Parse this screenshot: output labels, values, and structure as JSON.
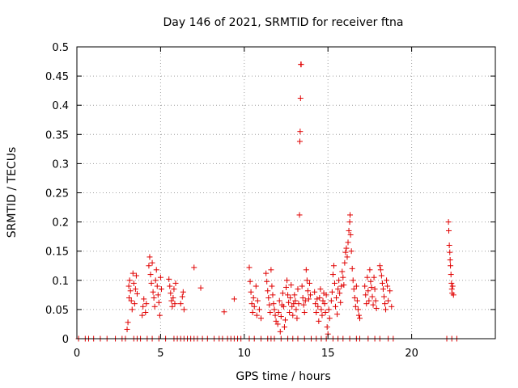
{
  "chart_data": {
    "type": "scatter",
    "title": "Day 146 of 2021, SRMTID for receiver ftna",
    "xlabel": "GPS time / hours",
    "ylabel": "SRMTID / TECUs",
    "xlim": [
      0,
      25
    ],
    "ylim": [
      0,
      0.5
    ],
    "xticks": [
      "0",
      "5",
      "10",
      "15",
      "20"
    ],
    "yticks": [
      "0",
      "0.05",
      "0.1",
      "0.15",
      "0.2",
      "0.25",
      "0.3",
      "0.35",
      "0.4",
      "0.45",
      "0.5"
    ],
    "grid": true,
    "marker": "+",
    "color": "#e00000",
    "points": [
      [
        0.1,
        0
      ],
      [
        0.5,
        0
      ],
      [
        0.7,
        0
      ],
      [
        1.0,
        0
      ],
      [
        1.4,
        0
      ],
      [
        1.8,
        0
      ],
      [
        2.3,
        0
      ],
      [
        2.7,
        0
      ],
      [
        2.9,
        0
      ],
      [
        3.4,
        0
      ],
      [
        3.6,
        0
      ],
      [
        3.8,
        0
      ],
      [
        4.2,
        0
      ],
      [
        4.5,
        0
      ],
      [
        4.9,
        0
      ],
      [
        5.3,
        0
      ],
      [
        5.8,
        0
      ],
      [
        6.0,
        0
      ],
      [
        6.2,
        0
      ],
      [
        6.4,
        0
      ],
      [
        6.6,
        0
      ],
      [
        6.8,
        0
      ],
      [
        7.0,
        0
      ],
      [
        7.2,
        0
      ],
      [
        7.5,
        0
      ],
      [
        7.8,
        0
      ],
      [
        8.2,
        0
      ],
      [
        8.5,
        0
      ],
      [
        8.7,
        0
      ],
      [
        9.0,
        0
      ],
      [
        9.2,
        0
      ],
      [
        9.4,
        0
      ],
      [
        9.6,
        0
      ],
      [
        9.8,
        0
      ],
      [
        10.3,
        0
      ],
      [
        10.6,
        0
      ],
      [
        11.0,
        0
      ],
      [
        11.4,
        0
      ],
      [
        11.6,
        0
      ],
      [
        11.8,
        0
      ],
      [
        12.2,
        0
      ],
      [
        12.6,
        0
      ],
      [
        12.9,
        0
      ],
      [
        13.2,
        0
      ],
      [
        13.6,
        0
      ],
      [
        14.0,
        0
      ],
      [
        14.3,
        0
      ],
      [
        14.6,
        0
      ],
      [
        14.9,
        0
      ],
      [
        15.3,
        0
      ],
      [
        15.6,
        0
      ],
      [
        15.9,
        0
      ],
      [
        16.3,
        0
      ],
      [
        16.7,
        0
      ],
      [
        16.9,
        0
      ],
      [
        17.4,
        0
      ],
      [
        17.8,
        0
      ],
      [
        18.1,
        0
      ],
      [
        18.6,
        0
      ],
      [
        18.9,
        0
      ],
      [
        22.1,
        0
      ],
      [
        22.4,
        0
      ],
      [
        22.7,
        0
      ],
      [
        3.0,
        0.016
      ],
      [
        3.05,
        0.028
      ],
      [
        3.1,
        0.09
      ],
      [
        3.12,
        0.07
      ],
      [
        3.15,
        0.1
      ],
      [
        3.2,
        0.082
      ],
      [
        3.25,
        0.065
      ],
      [
        3.3,
        0.05
      ],
      [
        3.35,
        0.112
      ],
      [
        3.4,
        0.095
      ],
      [
        3.45,
        0.06
      ],
      [
        3.5,
        0.085
      ],
      [
        3.55,
        0.108
      ],
      [
        3.6,
        0.077
      ],
      [
        3.9,
        0.04
      ],
      [
        3.95,
        0.055
      ],
      [
        4.0,
        0.068
      ],
      [
        4.1,
        0.045
      ],
      [
        4.15,
        0.06
      ],
      [
        4.3,
        0.125
      ],
      [
        4.35,
        0.14
      ],
      [
        4.4,
        0.11
      ],
      [
        4.45,
        0.095
      ],
      [
        4.5,
        0.13
      ],
      [
        4.55,
        0.08
      ],
      [
        4.6,
        0.07
      ],
      [
        4.65,
        0.055
      ],
      [
        4.7,
        0.1
      ],
      [
        4.75,
        0.118
      ],
      [
        4.8,
        0.09
      ],
      [
        4.85,
        0.075
      ],
      [
        4.9,
        0.062
      ],
      [
        4.95,
        0.04
      ],
      [
        5.0,
        0.105
      ],
      [
        5.05,
        0.085
      ],
      [
        5.5,
        0.102
      ],
      [
        5.55,
        0.09
      ],
      [
        5.6,
        0.078
      ],
      [
        5.65,
        0.065
      ],
      [
        5.7,
        0.055
      ],
      [
        5.75,
        0.07
      ],
      [
        5.8,
        0.085
      ],
      [
        5.85,
        0.06
      ],
      [
        5.9,
        0.095
      ],
      [
        6.2,
        0.06
      ],
      [
        6.3,
        0.072
      ],
      [
        6.35,
        0.08
      ],
      [
        6.4,
        0.05
      ],
      [
        7.0,
        0.122
      ],
      [
        7.4,
        0.087
      ],
      [
        8.8,
        0.046
      ],
      [
        9.4,
        0.068
      ],
      [
        10.3,
        0.122
      ],
      [
        10.35,
        0.098
      ],
      [
        10.4,
        0.08
      ],
      [
        10.45,
        0.06
      ],
      [
        10.5,
        0.045
      ],
      [
        10.55,
        0.07
      ],
      [
        10.6,
        0.055
      ],
      [
        10.7,
        0.09
      ],
      [
        10.75,
        0.04
      ],
      [
        10.8,
        0.065
      ],
      [
        10.9,
        0.05
      ],
      [
        11.0,
        0.035
      ],
      [
        11.3,
        0.112
      ],
      [
        11.35,
        0.098
      ],
      [
        11.4,
        0.082
      ],
      [
        11.45,
        0.07
      ],
      [
        11.5,
        0.058
      ],
      [
        11.55,
        0.045
      ],
      [
        11.6,
        0.118
      ],
      [
        11.65,
        0.09
      ],
      [
        11.7,
        0.075
      ],
      [
        11.75,
        0.06
      ],
      [
        11.8,
        0.05
      ],
      [
        11.85,
        0.04
      ],
      [
        11.9,
        0.03
      ],
      [
        12.0,
        0.025
      ],
      [
        12.05,
        0.045
      ],
      [
        12.1,
        0.065
      ],
      [
        12.15,
        0.012
      ],
      [
        12.2,
        0.038
      ],
      [
        12.25,
        0.058
      ],
      [
        12.3,
        0.078
      ],
      [
        12.35,
        0.055
      ],
      [
        12.4,
        0.02
      ],
      [
        12.45,
        0.032
      ],
      [
        12.5,
        0.088
      ],
      [
        12.55,
        0.1
      ],
      [
        12.6,
        0.075
      ],
      [
        12.65,
        0.062
      ],
      [
        12.7,
        0.045
      ],
      [
        12.75,
        0.07
      ],
      [
        12.8,
        0.092
      ],
      [
        12.85,
        0.055
      ],
      [
        12.9,
        0.04
      ],
      [
        12.95,
        0.06
      ],
      [
        13.0,
        0.075
      ],
      [
        13.05,
        0.065
      ],
      [
        13.1,
        0.05
      ],
      [
        13.15,
        0.035
      ],
      [
        13.2,
        0.085
      ],
      [
        13.25,
        0.06
      ],
      [
        13.3,
        0.212
      ],
      [
        13.32,
        0.338
      ],
      [
        13.34,
        0.355
      ],
      [
        13.36,
        0.412
      ],
      [
        13.38,
        0.47
      ],
      [
        13.4,
        0.47
      ],
      [
        13.45,
        0.09
      ],
      [
        13.5,
        0.07
      ],
      [
        13.55,
        0.058
      ],
      [
        13.6,
        0.045
      ],
      [
        13.65,
        0.065
      ],
      [
        13.7,
        0.118
      ],
      [
        13.75,
        0.1
      ],
      [
        13.8,
        0.082
      ],
      [
        13.85,
        0.068
      ],
      [
        13.9,
        0.095
      ],
      [
        13.95,
        0.075
      ],
      [
        14.2,
        0.08
      ],
      [
        14.25,
        0.06
      ],
      [
        14.3,
        0.045
      ],
      [
        14.35,
        0.068
      ],
      [
        14.4,
        0.055
      ],
      [
        14.45,
        0.03
      ],
      [
        14.5,
        0.07
      ],
      [
        14.55,
        0.085
      ],
      [
        14.6,
        0.05
      ],
      [
        14.65,
        0.04
      ],
      [
        14.7,
        0.065
      ],
      [
        14.75,
        0.078
      ],
      [
        14.8,
        0.06
      ],
      [
        14.85,
        0.045
      ],
      [
        14.9,
        0.075
      ],
      [
        14.95,
        0.02
      ],
      [
        15.0,
        0.008
      ],
      [
        15.05,
        0.05
      ],
      [
        15.1,
        0.035
      ],
      [
        15.2,
        0.065
      ],
      [
        15.25,
        0.08
      ],
      [
        15.3,
        0.11
      ],
      [
        15.35,
        0.125
      ],
      [
        15.4,
        0.095
      ],
      [
        15.45,
        0.055
      ],
      [
        15.5,
        0.07
      ],
      [
        15.55,
        0.042
      ],
      [
        15.6,
        0.085
      ],
      [
        15.65,
        0.1
      ],
      [
        15.7,
        0.078
      ],
      [
        15.75,
        0.062
      ],
      [
        15.8,
        0.09
      ],
      [
        15.85,
        0.115
      ],
      [
        15.9,
        0.105
      ],
      [
        15.95,
        0.092
      ],
      [
        16.0,
        0.13
      ],
      [
        16.05,
        0.148
      ],
      [
        16.1,
        0.155
      ],
      [
        16.15,
        0.14
      ],
      [
        16.2,
        0.165
      ],
      [
        16.25,
        0.185
      ],
      [
        16.3,
        0.2
      ],
      [
        16.32,
        0.212
      ],
      [
        16.35,
        0.178
      ],
      [
        16.4,
        0.15
      ],
      [
        16.45,
        0.12
      ],
      [
        16.5,
        0.1
      ],
      [
        16.55,
        0.085
      ],
      [
        16.6,
        0.07
      ],
      [
        16.65,
        0.055
      ],
      [
        16.7,
        0.09
      ],
      [
        16.75,
        0.065
      ],
      [
        16.8,
        0.05
      ],
      [
        16.85,
        0.04
      ],
      [
        16.9,
        0.035
      ],
      [
        17.2,
        0.09
      ],
      [
        17.25,
        0.075
      ],
      [
        17.3,
        0.06
      ],
      [
        17.35,
        0.105
      ],
      [
        17.4,
        0.082
      ],
      [
        17.45,
        0.065
      ],
      [
        17.5,
        0.118
      ],
      [
        17.55,
        0.098
      ],
      [
        17.6,
        0.088
      ],
      [
        17.65,
        0.072
      ],
      [
        17.7,
        0.058
      ],
      [
        17.75,
        0.105
      ],
      [
        17.8,
        0.085
      ],
      [
        17.85,
        0.065
      ],
      [
        17.9,
        0.052
      ],
      [
        18.1,
        0.125
      ],
      [
        18.15,
        0.118
      ],
      [
        18.2,
        0.108
      ],
      [
        18.25,
        0.095
      ],
      [
        18.3,
        0.085
      ],
      [
        18.35,
        0.072
      ],
      [
        18.4,
        0.06
      ],
      [
        18.45,
        0.05
      ],
      [
        18.5,
        0.1
      ],
      [
        18.55,
        0.09
      ],
      [
        18.6,
        0.065
      ],
      [
        18.7,
        0.082
      ],
      [
        18.8,
        0.055
      ],
      [
        22.2,
        0.2
      ],
      [
        22.22,
        0.185
      ],
      [
        22.25,
        0.16
      ],
      [
        22.28,
        0.148
      ],
      [
        22.3,
        0.135
      ],
      [
        22.32,
        0.125
      ],
      [
        22.35,
        0.11
      ],
      [
        22.38,
        0.095
      ],
      [
        22.4,
        0.085
      ],
      [
        22.42,
        0.078
      ],
      [
        22.45,
        0.09
      ],
      [
        22.5,
        0.075
      ]
    ]
  }
}
